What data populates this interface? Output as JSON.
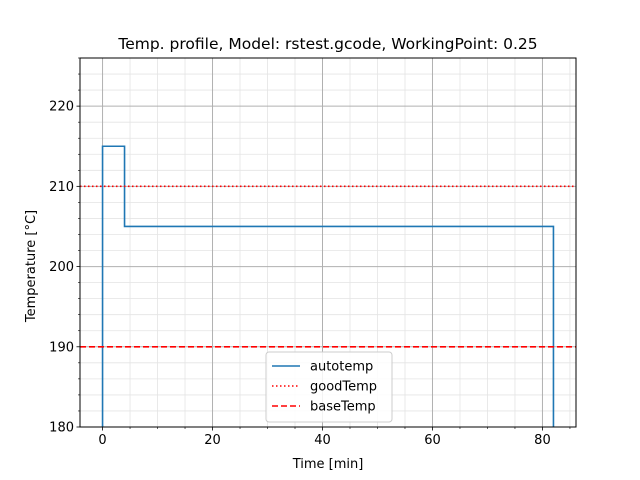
{
  "chart_data": {
    "type": "line",
    "title": "Temp. profile, Model: rstest.gcode, WorkingPoint: 0.25",
    "xlabel": "Time [min]",
    "ylabel": "Temperature [°C]",
    "xlim": [
      -4.1,
      86.1
    ],
    "ylim": [
      180,
      226
    ],
    "x_major_ticks": [
      0,
      20,
      40,
      60,
      80
    ],
    "x_tick_labels": [
      "0",
      "20",
      "40",
      "60",
      "80"
    ],
    "y_major_ticks": [
      180,
      190,
      200,
      210,
      220
    ],
    "y_tick_labels": [
      "180",
      "190",
      "200",
      "210",
      "220"
    ],
    "x_minor_step": 5,
    "y_minor_step": 2,
    "grid": true,
    "legend_position": "lower center",
    "series": [
      {
        "name": "autotemp",
        "color": "#1f77b4",
        "style": "solid",
        "x": [
          0,
          0,
          4,
          4,
          82,
          82
        ],
        "y": [
          180,
          215,
          215,
          205,
          205,
          180
        ]
      },
      {
        "name": "goodTemp",
        "color": "#ff0000",
        "style": "dotted",
        "x": [
          -4.1,
          86.1
        ],
        "y": [
          210,
          210
        ]
      },
      {
        "name": "baseTemp",
        "color": "#ff0000",
        "style": "dashed",
        "x": [
          -4.1,
          86.1
        ],
        "y": [
          190,
          190
        ]
      }
    ]
  }
}
